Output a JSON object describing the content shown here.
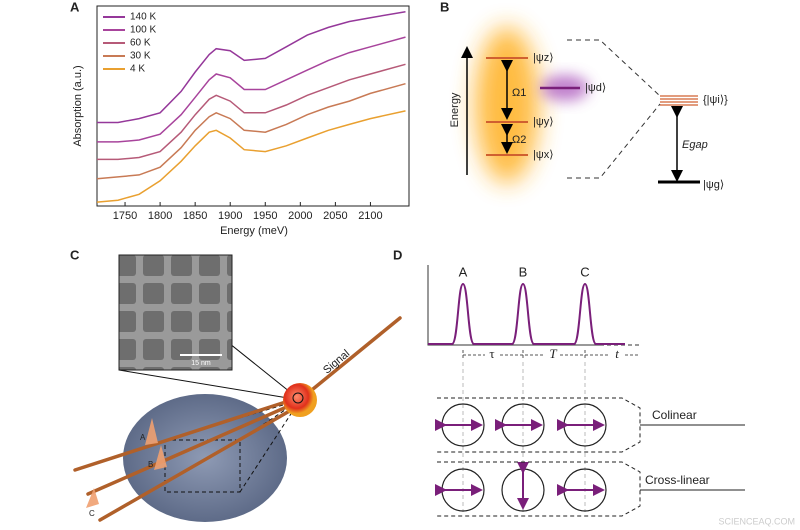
{
  "chart_data": {
    "type": "line",
    "panel_label": "A",
    "x_label": "Energy (meV)",
    "y_label": "Absorption (a.u.)",
    "x": [
      1710,
      1740,
      1770,
      1800,
      1830,
      1850,
      1870,
      1880,
      1900,
      1920,
      1950,
      1980,
      2010,
      2040,
      2070,
      2100,
      2150
    ],
    "xlim": [
      1710,
      2155
    ],
    "xticks": [
      1750,
      1800,
      1850,
      1900,
      1950,
      2000,
      2050,
      2100
    ],
    "ylim": [
      0,
      10.3
    ],
    "legend": "upper left",
    "series": [
      {
        "name": "140 K",
        "color": "#95389a",
        "values": [
          4.3,
          4.3,
          4.5,
          4.8,
          5.9,
          6.9,
          7.8,
          8.1,
          8.0,
          7.5,
          7.6,
          8.2,
          8.8,
          9.2,
          9.5,
          9.7,
          10.0
        ]
      },
      {
        "name": "100 K",
        "color": "#a8449c",
        "values": [
          3.3,
          3.3,
          3.4,
          3.7,
          4.7,
          5.6,
          6.5,
          6.8,
          6.6,
          6.0,
          6.0,
          6.5,
          7.0,
          7.5,
          7.9,
          8.2,
          8.7
        ]
      },
      {
        "name": "60 K",
        "color": "#b65a78",
        "values": [
          2.4,
          2.4,
          2.5,
          2.8,
          3.8,
          4.7,
          5.5,
          5.7,
          5.4,
          4.8,
          4.8,
          5.2,
          5.7,
          6.1,
          6.5,
          6.8,
          7.3
        ]
      },
      {
        "name": "30 K",
        "color": "#c87a55",
        "values": [
          1.4,
          1.5,
          1.6,
          2.0,
          3.0,
          3.9,
          4.6,
          4.8,
          4.5,
          3.9,
          3.8,
          4.2,
          4.7,
          5.1,
          5.4,
          5.8,
          6.3
        ]
      },
      {
        "name": "4 K",
        "color": "#e9a030",
        "values": [
          0.2,
          0.3,
          0.6,
          1.3,
          2.3,
          3.1,
          3.8,
          3.9,
          3.5,
          2.9,
          2.8,
          3.1,
          3.5,
          3.9,
          4.2,
          4.5,
          4.9
        ]
      }
    ]
  },
  "panel_b": {
    "label": "B",
    "axis_label": "Energy",
    "states": [
      "|ψz⟩",
      "|ψd⟩",
      "|ψy⟩",
      "|ψx⟩"
    ],
    "couplings": [
      "Ω1",
      "Ω2"
    ],
    "manifold": "{|ψi⟩}",
    "gap": "Egap",
    "ground": "|ψg⟩"
  },
  "panel_c": {
    "label": "C",
    "scale_bar": "15 nm",
    "signal": "Signal",
    "pulses": [
      "A",
      "B",
      "C"
    ]
  },
  "panel_d": {
    "label": "D",
    "pulses": [
      "A",
      "B",
      "C"
    ],
    "delays": [
      "τ",
      "T",
      "t"
    ],
    "rows": [
      "Colinear",
      "Cross-linear"
    ]
  },
  "watermark": "SCIENCEAQ.COM"
}
